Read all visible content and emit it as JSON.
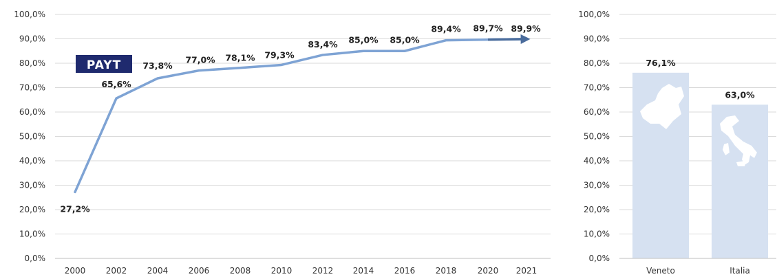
{
  "colors": {
    "line": "#7ea3d4",
    "line_end": "#4a6c9c",
    "bar": "#d6e1f1",
    "badge_bg": "#1f2a6e",
    "grid": "#d9d9d9",
    "axis": "#bfbfbf",
    "silhouette": "#ffffff"
  },
  "icons": {
    "veneto": "veneto-silhouette-icon",
    "italia": "italy-silhouette-icon"
  },
  "badge": {
    "label": "PAYT"
  },
  "chart_data": [
    {
      "type": "line",
      "title": "",
      "x": [
        "2000",
        "2002",
        "2004",
        "2006",
        "2008",
        "2010",
        "2012",
        "2014",
        "2016",
        "2018",
        "2020",
        "2021"
      ],
      "series": [
        {
          "values": [
            27.2,
            65.6,
            73.8,
            77.0,
            78.1,
            79.3,
            83.4,
            85.0,
            85.0,
            89.4,
            89.7,
            89.9
          ],
          "labels": [
            "27,2%",
            "65,6%",
            "73,8%",
            "77,0%",
            "78,1%",
            "79,3%",
            "83,4%",
            "85,0%",
            "85,0%",
            "89,4%",
            "89,7%",
            "89,9%"
          ]
        }
      ],
      "ylim": [
        0,
        100
      ],
      "yticks": [
        "0,0%",
        "10,0%",
        "20,0%",
        "30,0%",
        "40,0%",
        "50,0%",
        "60,0%",
        "70,0%",
        "80,0%",
        "90,0%",
        "100,0%"
      ],
      "grid": true,
      "xlabel": "",
      "ylabel": ""
    },
    {
      "type": "bar",
      "title": "",
      "categories": [
        "Veneto",
        "Italia"
      ],
      "values": [
        76.1,
        63.0
      ],
      "labels": [
        "76,1%",
        "63,0%"
      ],
      "ylim": [
        0,
        100
      ],
      "yticks": [
        "0,0%",
        "10,0%",
        "20,0%",
        "30,0%",
        "40,0%",
        "50,0%",
        "60,0%",
        "70,0%",
        "80,0%",
        "90,0%",
        "100,0%"
      ],
      "grid": true,
      "xlabel": "",
      "ylabel": ""
    }
  ]
}
